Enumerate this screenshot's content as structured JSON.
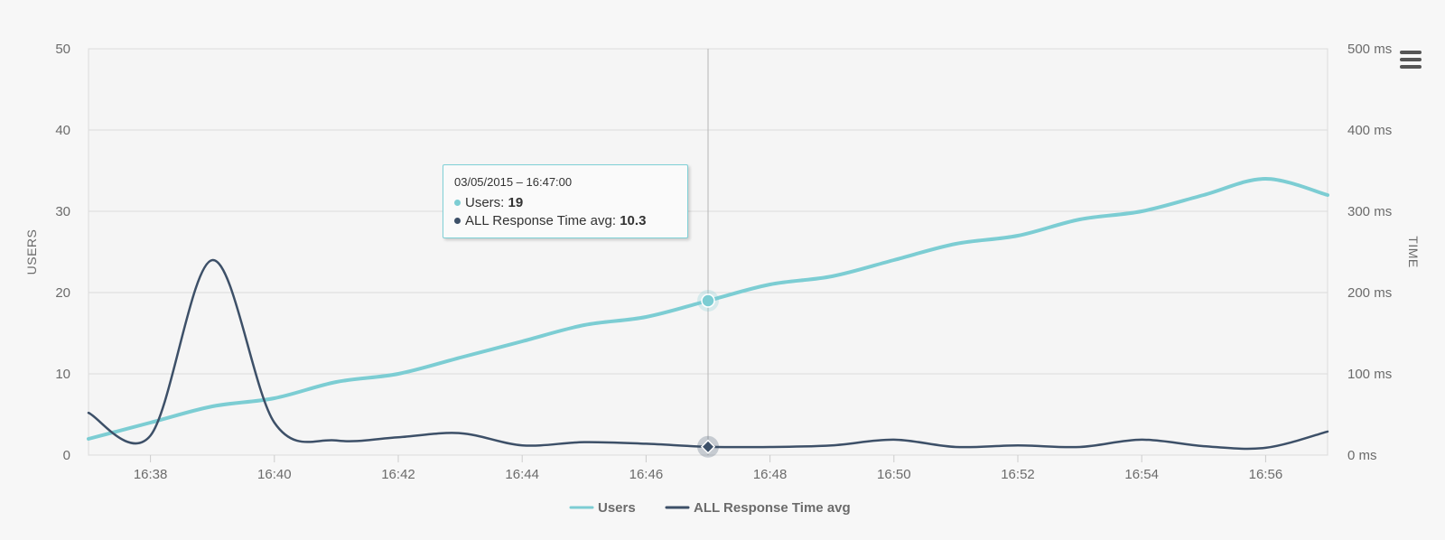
{
  "chart_data": {
    "type": "line",
    "x": [
      "16:37",
      "16:38",
      "16:39",
      "16:40",
      "16:41",
      "16:42",
      "16:43",
      "16:44",
      "16:45",
      "16:46",
      "16:47",
      "16:48",
      "16:49",
      "16:50",
      "16:51",
      "16:52",
      "16:53",
      "16:54",
      "16:55",
      "16:56",
      "16:57"
    ],
    "xticks": [
      "16:38",
      "16:40",
      "16:42",
      "16:44",
      "16:46",
      "16:48",
      "16:50",
      "16:52",
      "16:54",
      "16:56"
    ],
    "series": [
      {
        "name": "Users",
        "axis": "left",
        "color": "#7ccdd3",
        "values": [
          2,
          4,
          6,
          7,
          9,
          10,
          12,
          14,
          16,
          17,
          19,
          21,
          22,
          24,
          26,
          27,
          29,
          30,
          32,
          34,
          32
        ]
      },
      {
        "name": "ALL Response Time avg",
        "axis": "right",
        "color": "#3d5068",
        "values": [
          52,
          24,
          240,
          40,
          18,
          22,
          27,
          12,
          16,
          14,
          10.3,
          10,
          12,
          19,
          10,
          12,
          10,
          19,
          11,
          9,
          29
        ]
      }
    ],
    "y_left": {
      "title": "USERS",
      "min": 0,
      "max": 50,
      "ticks": [
        "0",
        "10",
        "20",
        "30",
        "40",
        "50"
      ]
    },
    "y_right": {
      "title": "TIME",
      "min": 0,
      "max": 500,
      "ticks": [
        "0 ms",
        "100 ms",
        "200 ms",
        "300 ms",
        "400 ms",
        "500 ms"
      ]
    },
    "grid": true,
    "legend_position": "bottom-center",
    "crosshair_x": "16:47",
    "tooltip": {
      "header": "03/05/2015 – 16:47:00",
      "rows": [
        {
          "label": "Users: ",
          "value": "19",
          "color": "#7ccdd3"
        },
        {
          "label": "ALL Response Time avg: ",
          "value": "10.3",
          "color": "#3d5068"
        }
      ]
    }
  },
  "menu": {
    "icon": "hamburger-menu-icon"
  }
}
